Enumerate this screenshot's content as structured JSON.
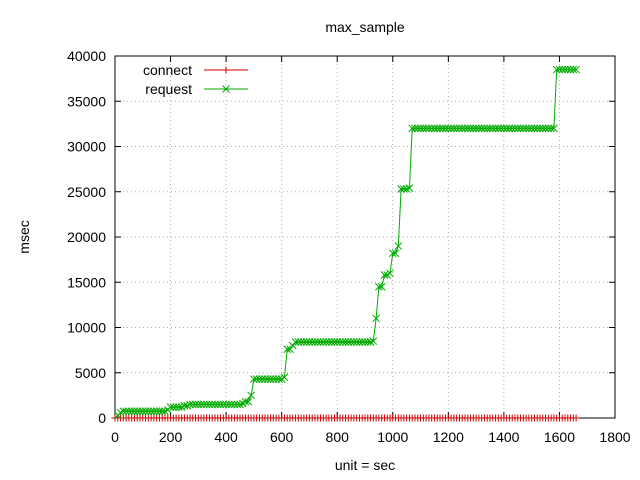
{
  "chart_data": {
    "type": "line",
    "title": "max_sample",
    "xlabel": "unit = sec",
    "ylabel": "msec",
    "xlim": [
      0,
      1800
    ],
    "ylim": [
      0,
      40000
    ],
    "x_ticks": [
      0,
      200,
      400,
      600,
      800,
      1000,
      1200,
      1400,
      1600,
      1800
    ],
    "y_ticks": [
      0,
      5000,
      10000,
      15000,
      20000,
      25000,
      30000,
      35000,
      40000
    ],
    "grid": true,
    "legend_position": "top-left",
    "series": [
      {
        "name": "connect",
        "color": "#cc0000",
        "marker": "plus",
        "sample_step": 10,
        "points": [
          [
            0,
            0
          ],
          [
            1660,
            0
          ]
        ]
      },
      {
        "name": "request",
        "color": "#00aa00",
        "marker": "cross",
        "sample_step": 10,
        "points": [
          [
            10,
            300
          ],
          [
            20,
            600
          ],
          [
            30,
            750
          ],
          [
            190,
            900
          ],
          [
            200,
            1200
          ],
          [
            250,
            1350
          ],
          [
            270,
            1500
          ],
          [
            460,
            1600
          ],
          [
            470,
            1800
          ],
          [
            490,
            2500
          ],
          [
            500,
            4300
          ],
          [
            610,
            4500
          ],
          [
            620,
            7600
          ],
          [
            640,
            8000
          ],
          [
            650,
            8400
          ],
          [
            930,
            8500
          ],
          [
            940,
            11000
          ],
          [
            950,
            14500
          ],
          [
            970,
            15800
          ],
          [
            990,
            16000
          ],
          [
            1000,
            18200
          ],
          [
            1020,
            19000
          ],
          [
            1030,
            25300
          ],
          [
            1060,
            25400
          ],
          [
            1070,
            32000
          ],
          [
            1580,
            32000
          ],
          [
            1590,
            38500
          ],
          [
            1660,
            38500
          ]
        ]
      }
    ]
  }
}
